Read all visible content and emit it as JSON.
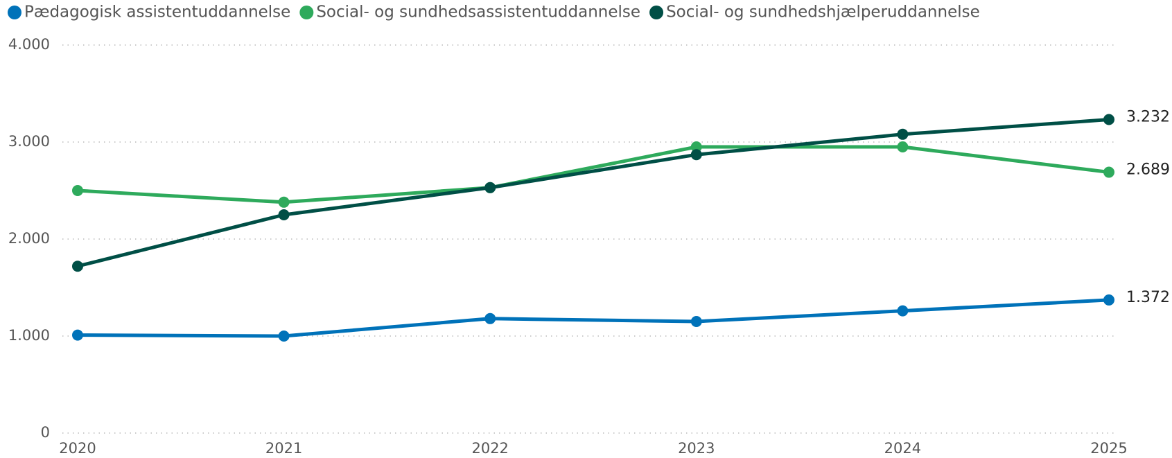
{
  "chart_data": {
    "type": "line",
    "x": [
      2020,
      2021,
      2022,
      2023,
      2024,
      2025
    ],
    "xlim": [
      2020,
      2025
    ],
    "ylim": [
      0,
      4000
    ],
    "yticks": [
      0,
      {
        "value": 1000,
        "label": "1.000"
      },
      {
        "value": 2000,
        "label": "2.000"
      },
      {
        "value": 3000,
        "label": "3.000"
      },
      {
        "value": 4000,
        "label": "4.000"
      }
    ],
    "grid": true,
    "legend": "top",
    "series": [
      {
        "name": "Pædagogisk assistentuddannelse",
        "color": "#0072b9",
        "values": [
          1010,
          1000,
          1180,
          1150,
          1260,
          1372
        ],
        "value_labels": [
          null,
          null,
          null,
          null,
          null,
          "1.372"
        ]
      },
      {
        "name": "Social- og sundhedsassistentuddannelse",
        "color": "#2eaa5c",
        "values": [
          2500,
          2380,
          2530,
          2950,
          2950,
          2689
        ],
        "value_labels": [
          null,
          null,
          null,
          null,
          null,
          "2.689"
        ]
      },
      {
        "name": "Social- og sundhedshjælperuddannelse",
        "color": "#004f46",
        "values": [
          1720,
          2250,
          2530,
          2870,
          3080,
          3232
        ],
        "value_labels": [
          null,
          null,
          null,
          null,
          null,
          "3.232"
        ]
      }
    ]
  }
}
